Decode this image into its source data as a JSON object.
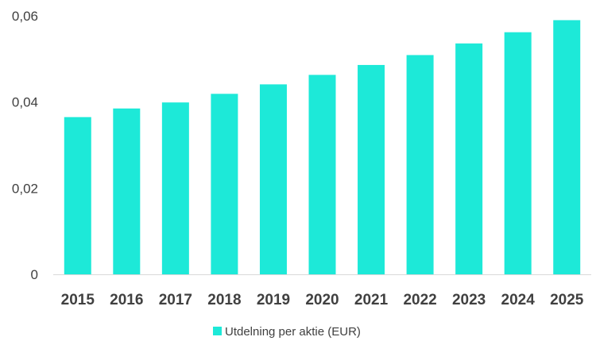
{
  "chart_data": {
    "type": "bar",
    "categories": [
      "2015",
      "2016",
      "2017",
      "2018",
      "2019",
      "2020",
      "2021",
      "2022",
      "2023",
      "2024",
      "2025"
    ],
    "series": [
      {
        "name": "Utdelning per aktie (EUR)",
        "values": [
          0.0365,
          0.0385,
          0.0399,
          0.0419,
          0.0441,
          0.0463,
          0.0486,
          0.0509,
          0.0536,
          0.0562,
          0.059
        ],
        "color": "#1de9d8"
      }
    ],
    "yticks": [
      "0",
      "0,02",
      "0,04",
      "0,06"
    ],
    "ytick_values": [
      0,
      0.02,
      0.04,
      0.06
    ],
    "ylim": [
      0,
      0.06
    ],
    "title": "",
    "xlabel": "",
    "ylabel": "",
    "grid": false,
    "legend_position": "bottom"
  }
}
